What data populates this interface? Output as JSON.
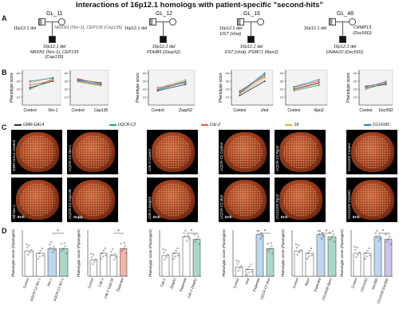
{
  "title": "Interactions of 16p12.1 homologs with patient-specific \"second-hits\"",
  "panels": {
    "a": "A",
    "b": "B",
    "c": "C",
    "d": "D"
  },
  "pedigrees": [
    {
      "id": "GL_11",
      "left": "16p12.1 del",
      "right": "NRXN1 (Nrx-1),\nCEP135 (Cep135)",
      "child": "16p12.1 del\nNRXN1 (Nrx-1), CEP135 (Cep135)"
    },
    {
      "id": "GL_12",
      "left": "16p12.1 del",
      "right": "",
      "child": "16p12.1 del\nPDHB5 (Zasp52)"
    },
    {
      "id": "GL_16",
      "left": "16p12.1 del\nDST (shot)",
      "right": "",
      "child": "16p12.1 del\nDST (shot), PSMC1 (Rpn2)"
    },
    {
      "id": "GL_48",
      "left": "16p12.1 del",
      "right": "CRMP13\n(Dsc56D)",
      "child": "16p12.1 del\nDNAH10 (Dsc56D)"
    }
  ],
  "legend": [
    {
      "label": "GMR-GAL4",
      "color": "#333333"
    },
    {
      "label": "UQCR-C2",
      "color": "#2a9d8f"
    },
    {
      "label": "Cdc-2",
      "color": "#e45a3c"
    },
    {
      "label": "Sif",
      "color": "#f2a541"
    },
    {
      "label": "CG14182",
      "color": "#2f7fc1"
    }
  ],
  "b_axis_labels": [
    "Phenotype score",
    "Phenotype score",
    "Phenotype score",
    "Phenotype score"
  ],
  "b_xlabels": [
    [
      "Control",
      "Nrx-1"
    ],
    [
      "Control",
      "Cep135"
    ],
    [
      "Control",
      "Zasp52"
    ],
    [
      "Control",
      "shot"
    ],
    [
      "Control",
      "Rpn2"
    ],
    [
      "Control",
      "Dsc56D"
    ]
  ],
  "eye_labels_top": [
    "GMR-GAL4 Control",
    "UQCR-C2 Nrx-1",
    "Cdc-2 Control",
    "UQCR-C2 Control",
    "UQCR-C2 Rpn2",
    "CG14182 Control"
  ],
  "eye_labels_bottom": [
    "Sif Nrx-1",
    "UQCR-C2 Cep135",
    "Cdc-2 Zasp52",
    "UQCR-C2 shot",
    "CG14182 Rpn2",
    "CG14182 Dsc56D"
  ],
  "eye_tags": {
    "enh": "Enh.",
    "supp": "Supp."
  },
  "d_plots": [
    {
      "ylabel": "Phenotypic score (Flynotyper)",
      "cats": [
        "Control",
        "UQCR-C2 Nrx-1",
        "Nrx-1",
        "UQCR-C2 Nrx-1"
      ]
    },
    {
      "ylabel": "Phenotypic score (Flynotyper)",
      "cats": [
        "Control",
        "Cdc-2",
        "Cdc-2 Cep135",
        "Expected"
      ]
    },
    {
      "ylabel": "Phenotypic score (Flynotyper)",
      "cats": [
        "Cdc-2",
        "Zasp52",
        "Expected",
        "Cdc-2 Zasp52"
      ]
    },
    {
      "ylabel": "Phenotypic score (Flynotyper)",
      "cats": [
        "Control",
        "shot",
        "Expected",
        "UQCR-C2 shot"
      ]
    },
    {
      "ylabel": "Phenotypic score (Flynotyper)",
      "cats": [
        "Control",
        "Rpn2",
        "Expected",
        "CG14182 Rpn2"
      ]
    },
    {
      "ylabel": "Phenotypic score (Flynotyper)",
      "cats": [
        "Control",
        "CG14182",
        "Dsc56D",
        "CG14182 Dsc56D"
      ]
    }
  ],
  "significance": "*"
}
